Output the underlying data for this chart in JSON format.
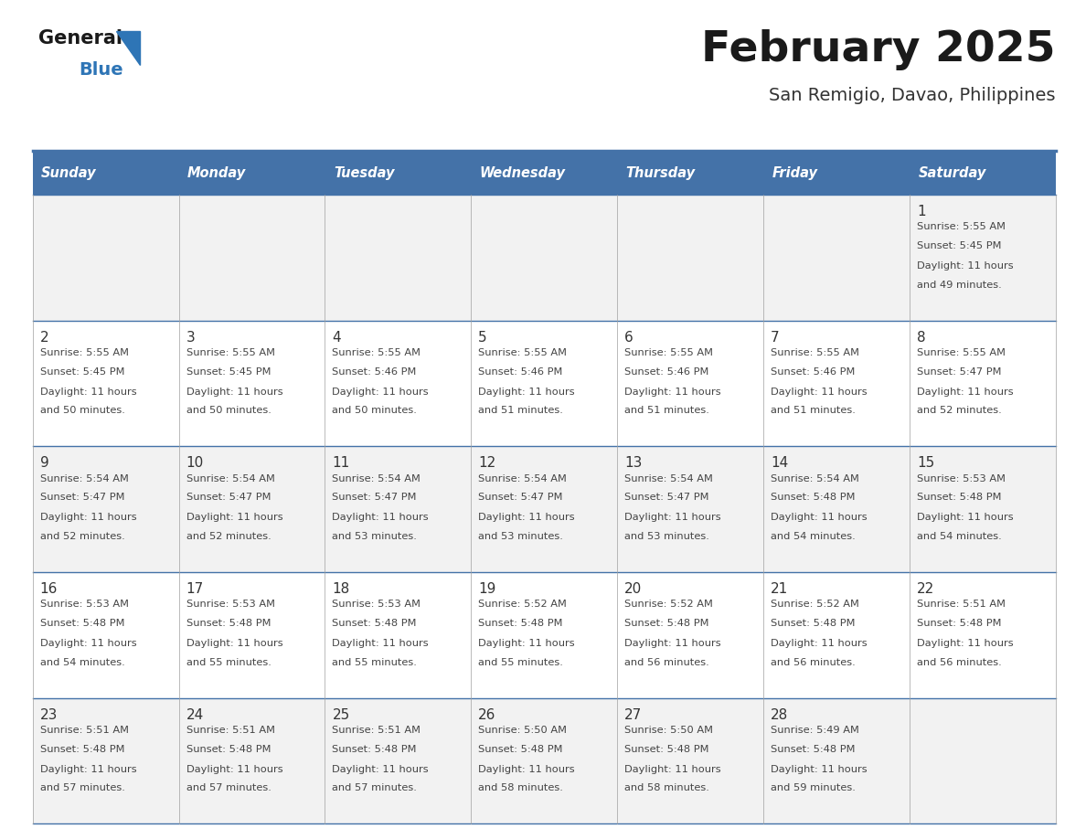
{
  "title": "February 2025",
  "subtitle": "San Remigio, Davao, Philippines",
  "header_bg": "#4472A8",
  "header_text": "#FFFFFF",
  "header_days": [
    "Sunday",
    "Monday",
    "Tuesday",
    "Wednesday",
    "Thursday",
    "Friday",
    "Saturday"
  ],
  "row_bg_odd": "#F2F2F2",
  "row_bg_even": "#FFFFFF",
  "cell_border": "#4472A8",
  "cell_border_light": "#A0A0A0",
  "day_number_color": "#333333",
  "info_text_color": "#444444",
  "title_color": "#1a1a1a",
  "subtitle_color": "#333333",
  "logo_general_color": "#1a1a1a",
  "logo_blue_color": "#2E75B6",
  "calendar": [
    [
      null,
      null,
      null,
      null,
      null,
      null,
      {
        "day": 1,
        "sunrise": "5:55 AM",
        "sunset": "5:45 PM",
        "daylight": "11 hours and 49 minutes."
      }
    ],
    [
      {
        "day": 2,
        "sunrise": "5:55 AM",
        "sunset": "5:45 PM",
        "daylight": "11 hours and 50 minutes."
      },
      {
        "day": 3,
        "sunrise": "5:55 AM",
        "sunset": "5:45 PM",
        "daylight": "11 hours and 50 minutes."
      },
      {
        "day": 4,
        "sunrise": "5:55 AM",
        "sunset": "5:46 PM",
        "daylight": "11 hours and 50 minutes."
      },
      {
        "day": 5,
        "sunrise": "5:55 AM",
        "sunset": "5:46 PM",
        "daylight": "11 hours and 51 minutes."
      },
      {
        "day": 6,
        "sunrise": "5:55 AM",
        "sunset": "5:46 PM",
        "daylight": "11 hours and 51 minutes."
      },
      {
        "day": 7,
        "sunrise": "5:55 AM",
        "sunset": "5:46 PM",
        "daylight": "11 hours and 51 minutes."
      },
      {
        "day": 8,
        "sunrise": "5:55 AM",
        "sunset": "5:47 PM",
        "daylight": "11 hours and 52 minutes."
      }
    ],
    [
      {
        "day": 9,
        "sunrise": "5:54 AM",
        "sunset": "5:47 PM",
        "daylight": "11 hours and 52 minutes."
      },
      {
        "day": 10,
        "sunrise": "5:54 AM",
        "sunset": "5:47 PM",
        "daylight": "11 hours and 52 minutes."
      },
      {
        "day": 11,
        "sunrise": "5:54 AM",
        "sunset": "5:47 PM",
        "daylight": "11 hours and 53 minutes."
      },
      {
        "day": 12,
        "sunrise": "5:54 AM",
        "sunset": "5:47 PM",
        "daylight": "11 hours and 53 minutes."
      },
      {
        "day": 13,
        "sunrise": "5:54 AM",
        "sunset": "5:47 PM",
        "daylight": "11 hours and 53 minutes."
      },
      {
        "day": 14,
        "sunrise": "5:54 AM",
        "sunset": "5:48 PM",
        "daylight": "11 hours and 54 minutes."
      },
      {
        "day": 15,
        "sunrise": "5:53 AM",
        "sunset": "5:48 PM",
        "daylight": "11 hours and 54 minutes."
      }
    ],
    [
      {
        "day": 16,
        "sunrise": "5:53 AM",
        "sunset": "5:48 PM",
        "daylight": "11 hours and 54 minutes."
      },
      {
        "day": 17,
        "sunrise": "5:53 AM",
        "sunset": "5:48 PM",
        "daylight": "11 hours and 55 minutes."
      },
      {
        "day": 18,
        "sunrise": "5:53 AM",
        "sunset": "5:48 PM",
        "daylight": "11 hours and 55 minutes."
      },
      {
        "day": 19,
        "sunrise": "5:52 AM",
        "sunset": "5:48 PM",
        "daylight": "11 hours and 55 minutes."
      },
      {
        "day": 20,
        "sunrise": "5:52 AM",
        "sunset": "5:48 PM",
        "daylight": "11 hours and 56 minutes."
      },
      {
        "day": 21,
        "sunrise": "5:52 AM",
        "sunset": "5:48 PM",
        "daylight": "11 hours and 56 minutes."
      },
      {
        "day": 22,
        "sunrise": "5:51 AM",
        "sunset": "5:48 PM",
        "daylight": "11 hours and 56 minutes."
      }
    ],
    [
      {
        "day": 23,
        "sunrise": "5:51 AM",
        "sunset": "5:48 PM",
        "daylight": "11 hours and 57 minutes."
      },
      {
        "day": 24,
        "sunrise": "5:51 AM",
        "sunset": "5:48 PM",
        "daylight": "11 hours and 57 minutes."
      },
      {
        "day": 25,
        "sunrise": "5:51 AM",
        "sunset": "5:48 PM",
        "daylight": "11 hours and 57 minutes."
      },
      {
        "day": 26,
        "sunrise": "5:50 AM",
        "sunset": "5:48 PM",
        "daylight": "11 hours and 58 minutes."
      },
      {
        "day": 27,
        "sunrise": "5:50 AM",
        "sunset": "5:48 PM",
        "daylight": "11 hours and 58 minutes."
      },
      {
        "day": 28,
        "sunrise": "5:49 AM",
        "sunset": "5:48 PM",
        "daylight": "11 hours and 59 minutes."
      },
      null
    ]
  ]
}
